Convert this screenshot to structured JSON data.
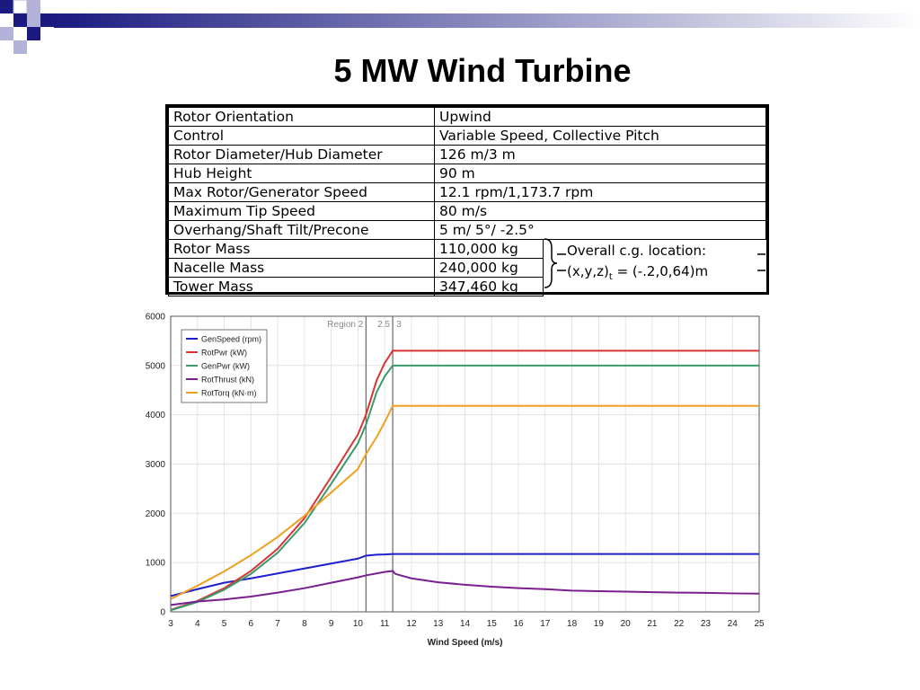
{
  "slide": {
    "title": "5 MW Wind Turbine"
  },
  "specs": [
    {
      "label": "Rotor Orientation",
      "value": "Upwind"
    },
    {
      "label": "Control",
      "value": "Variable Speed, Collective Pitch"
    },
    {
      "label": "Rotor Diameter/Hub Diameter",
      "value": "126 m/3 m"
    },
    {
      "label": "Hub Height",
      "value": "90 m"
    },
    {
      "label": "Max Rotor/Generator Speed",
      "value": "12.1 rpm/1,173.7 rpm"
    },
    {
      "label": "Maximum Tip Speed",
      "value": "80 m/s"
    },
    {
      "label": "Overhang/Shaft Tilt/Precone",
      "value": "5 m/ 5°/ -2.5°"
    },
    {
      "label": "Rotor Mass",
      "value": "110,000 kg"
    },
    {
      "label": "Nacelle Mass",
      "value": "240,000 kg"
    },
    {
      "label": "Tower Mass",
      "value": "347,460 kg"
    }
  ],
  "cg_note": {
    "line1": "Overall c.g. location:",
    "line2_prefix": "(x,y,z)",
    "line2_sub": "t",
    "line2_suffix": " = (-.2,0,64)m"
  },
  "colors": {
    "deco_dark": "#1a1a80",
    "deco_light": "#b3b3d9"
  },
  "chart_data": {
    "type": "line",
    "title": "",
    "xlabel": "Wind Speed (m/s)",
    "ylabel": "",
    "xlim": [
      3,
      25
    ],
    "ylim": [
      0,
      6000
    ],
    "xticks": [
      3,
      4,
      5,
      6,
      7,
      8,
      9,
      10,
      11,
      12,
      13,
      14,
      15,
      16,
      17,
      18,
      19,
      20,
      21,
      22,
      23,
      24,
      25
    ],
    "yticks": [
      0,
      1000,
      2000,
      3000,
      4000,
      5000,
      6000
    ],
    "grid": true,
    "legend_position": "top-left",
    "regions": [
      {
        "label": "Region 2",
        "x": 10.3
      },
      {
        "label": "2.5",
        "x": 11.3
      },
      {
        "label": "3",
        "x": 11.3
      }
    ],
    "x": [
      3,
      4,
      5,
      6,
      7,
      8,
      9,
      10,
      10.3,
      10.7,
      11,
      11.3,
      11.4,
      12,
      13,
      14,
      15,
      16,
      17,
      18,
      19,
      20,
      21,
      22,
      23,
      24,
      25
    ],
    "series": [
      {
        "name": "GenSpeed (rpm)",
        "color": "#1f1fcc",
        "values": [
          320,
          460,
          590,
          680,
          780,
          880,
          980,
          1080,
          1140,
          1160,
          1165,
          1173.7,
          1173.7,
          1173.7,
          1173.7,
          1173.7,
          1173.7,
          1173.7,
          1173.7,
          1173.7,
          1173.7,
          1173.7,
          1173.7,
          1173.7,
          1173.7,
          1173.7,
          1173.7
        ]
      },
      {
        "name": "RotPwr (kW)",
        "color": "#d93333",
        "values": [
          40,
          220,
          480,
          830,
          1280,
          1900,
          2740,
          3600,
          4000,
          4700,
          5050,
          5300,
          5300,
          5300,
          5300,
          5300,
          5300,
          5300,
          5300,
          5300,
          5300,
          5300,
          5300,
          5300,
          5300,
          5300,
          5300
        ]
      },
      {
        "name": "GenPwr (kW)",
        "color": "#3a9a6a",
        "values": [
          30,
          200,
          450,
          770,
          1200,
          1800,
          2600,
          3420,
          3800,
          4460,
          4780,
          5000,
          5000,
          5000,
          5000,
          5000,
          5000,
          5000,
          5000,
          5000,
          5000,
          5000,
          5000,
          5000,
          5000,
          5000,
          5000
        ]
      },
      {
        "name": "RotThrust (kN)",
        "color": "#7a1f8f",
        "values": [
          140,
          210,
          250,
          310,
          390,
          480,
          590,
          700,
          740,
          780,
          810,
          830,
          770,
          680,
          600,
          550,
          510,
          480,
          460,
          430,
          420,
          410,
          400,
          390,
          385,
          375,
          370
        ]
      },
      {
        "name": "RotTorq (kN·m)",
        "color": "#f0a020",
        "values": [
          260,
          530,
          820,
          1150,
          1520,
          1950,
          2420,
          2900,
          3200,
          3550,
          3850,
          4180,
          4180,
          4180,
          4180,
          4180,
          4180,
          4180,
          4180,
          4180,
          4180,
          4180,
          4180,
          4180,
          4180,
          4180,
          4180
        ]
      }
    ]
  }
}
